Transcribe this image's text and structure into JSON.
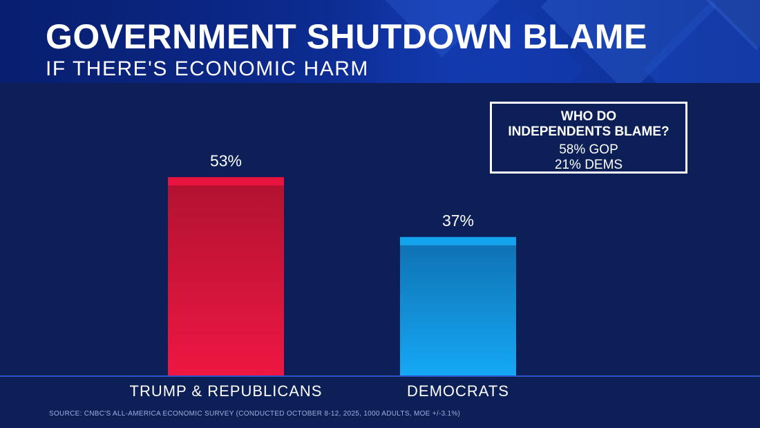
{
  "header": {
    "title": "GOVERNMENT SHUTDOWN BLAME",
    "subtitle": "IF THERE'S ECONOMIC HARM"
  },
  "chart_data": {
    "type": "bar",
    "title": "GOVERNMENT SHUTDOWN BLAME",
    "subtitle": "IF THERE'S ECONOMIC HARM",
    "categories": [
      "TRUMP & REPUBLICANS",
      "DEMOCRATS"
    ],
    "values": [
      53,
      37
    ],
    "value_labels": [
      "53%",
      "37%"
    ],
    "colors": [
      "#e8143f",
      "#14a4ee"
    ],
    "ylim": [
      0,
      100
    ],
    "xlabel": "",
    "ylabel": "",
    "grid": false
  },
  "callout": {
    "question_line1": "WHO DO",
    "question_line2": "INDEPENDENTS BLAME?",
    "stat1": "58% GOP",
    "stat2": "21% DEMS"
  },
  "source": "SOURCE: CNBC'S ALL-AMERICA ECONOMIC SURVEY (CONDUCTED OCTOBER 8-12, 2025, 1000 ADULTS, MOE +/-3.1%)"
}
